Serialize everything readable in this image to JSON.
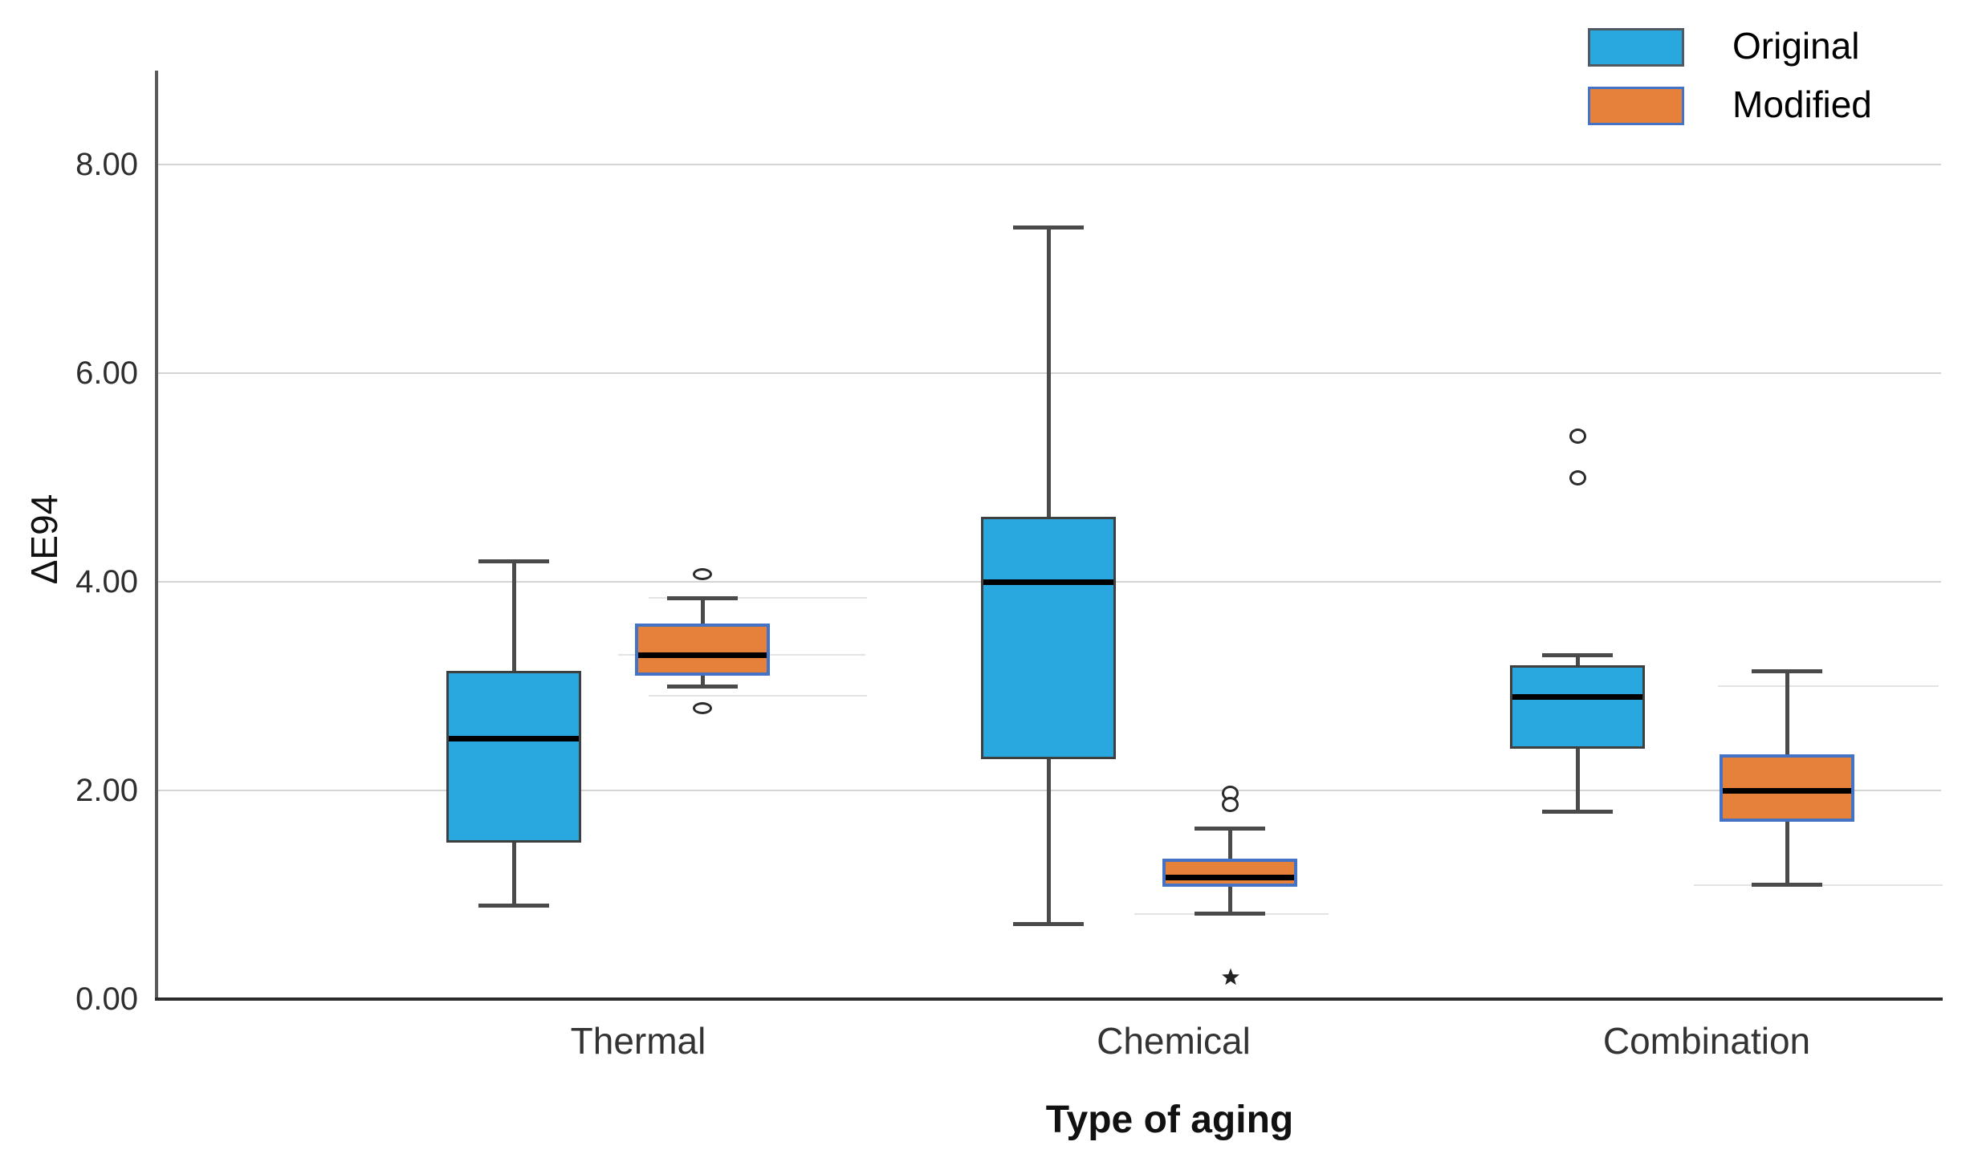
{
  "chart_data": {
    "type": "boxplot",
    "title": "",
    "xlabel": "Type of aging",
    "ylabel": "ΔE94",
    "yticks": [
      "0.00",
      "2.00",
      "4.00",
      "6.00",
      "8.00"
    ],
    "ytick_values": [
      0,
      2,
      4,
      6,
      8
    ],
    "ylim": [
      0,
      8.85
    ],
    "grid": "horizontal-only",
    "gridline_color": "#d4d4d4",
    "categories": [
      "Thermal",
      "Chemical",
      "Combination"
    ],
    "legend_position": "top-right",
    "series": [
      {
        "name": "Original",
        "color": "#29A8E0",
        "box_border_color": "#3F3F3F",
        "boxes": [
          {
            "category": "Thermal",
            "whisker_low": 0.9,
            "q1": 1.5,
            "median": 2.5,
            "q3": 3.15,
            "whisker_high": 4.2,
            "outliers": [],
            "extreme_outliers": []
          },
          {
            "category": "Chemical",
            "whisker_low": 0.72,
            "q1": 2.3,
            "median": 4.0,
            "q3": 4.62,
            "whisker_high": 7.4,
            "outliers": [],
            "extreme_outliers": []
          },
          {
            "category": "Combination",
            "whisker_low": 1.8,
            "q1": 2.4,
            "median": 2.9,
            "q3": 3.2,
            "whisker_high": 3.3,
            "outliers": [
              5.4,
              5.0
            ],
            "extreme_outliers": []
          }
        ]
      },
      {
        "name": "Modified",
        "color": "#E6813C",
        "box_border_color": "#4472C4",
        "boxes": [
          {
            "category": "Thermal",
            "whisker_low": 3.0,
            "q1": 3.1,
            "median": 3.3,
            "q3": 3.6,
            "whisker_high": 3.85,
            "outliers": [
              4.08,
              2.79
            ],
            "extreme_outliers": []
          },
          {
            "category": "Chemical",
            "whisker_low": 0.82,
            "q1": 1.08,
            "median": 1.17,
            "q3": 1.35,
            "whisker_high": 1.64,
            "outliers": [
              1.98,
              1.87
            ],
            "extreme_outliers": [
              0.21
            ]
          },
          {
            "category": "Combination",
            "whisker_low": 1.1,
            "q1": 1.7,
            "median": 2.0,
            "q3": 2.35,
            "whisker_high": 3.15,
            "outliers": [],
            "extreme_outliers": []
          }
        ]
      }
    ]
  }
}
